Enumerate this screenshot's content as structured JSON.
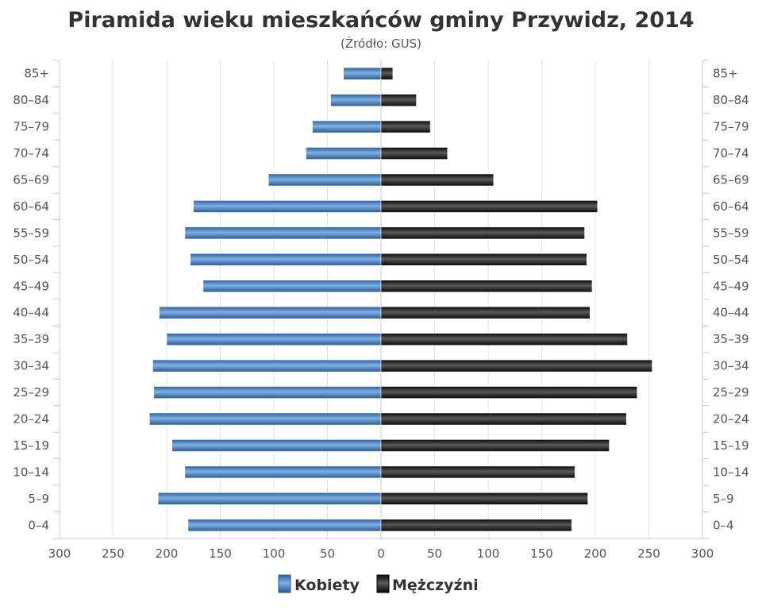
{
  "chart_data": {
    "type": "bar",
    "orientation": "horizontal-pyramid",
    "title": "Piramida wieku mieszkańców gminy Przywidz, 2014",
    "subtitle": "(Źródło: GUS)",
    "categories": [
      "85+",
      "80–84",
      "75–79",
      "70–74",
      "65–69",
      "60–64",
      "55–59",
      "50–54",
      "45–49",
      "40–44",
      "35–39",
      "30–34",
      "25–29",
      "20–24",
      "15–19",
      "10–14",
      "5–9",
      "0–4"
    ],
    "series": [
      {
        "name": "Kobiety",
        "side": "left",
        "color": "#4a83c4",
        "values": [
          35,
          47,
          64,
          70,
          105,
          175,
          183,
          178,
          166,
          207,
          200,
          213,
          212,
          216,
          195,
          183,
          208,
          180
        ]
      },
      {
        "name": "Mężczyźni",
        "side": "right",
        "color": "#222222",
        "values": [
          11,
          33,
          46,
          62,
          105,
          202,
          190,
          192,
          197,
          195,
          230,
          253,
          239,
          229,
          213,
          181,
          193,
          178
        ]
      }
    ],
    "x_ticks": [
      "300",
      "250",
      "200",
      "150",
      "100",
      "50",
      "0",
      "50",
      "100",
      "150",
      "200",
      "250",
      "300"
    ],
    "xlim": [
      -300,
      300
    ],
    "grid": true,
    "legend": "bottom-center"
  }
}
